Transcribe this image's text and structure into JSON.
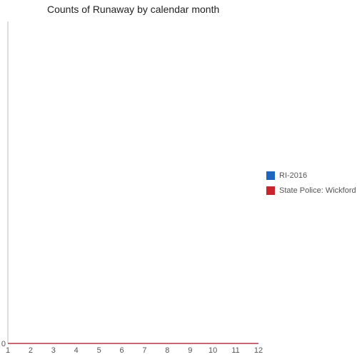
{
  "chart_data": {
    "type": "line",
    "title": "Counts of Runaway by calendar month",
    "xlabel": "",
    "ylabel": "",
    "x": [
      1,
      2,
      3,
      4,
      5,
      6,
      7,
      8,
      9,
      10,
      11,
      12
    ],
    "xlim": [
      1,
      12
    ],
    "ylim": [
      0,
      1
    ],
    "yticks": [
      0
    ],
    "grid": false,
    "legend_position": "right",
    "series": [
      {
        "name": "RI-2016",
        "color": "#1f66c0",
        "values": [
          0,
          0,
          0,
          0,
          0,
          0,
          0,
          0,
          0,
          0,
          0,
          0
        ]
      },
      {
        "name": "State Police: Wickford",
        "color": "#c8242b",
        "values": [
          0,
          0,
          0,
          0,
          0,
          0,
          0,
          0,
          0,
          0,
          0,
          0
        ]
      }
    ]
  }
}
